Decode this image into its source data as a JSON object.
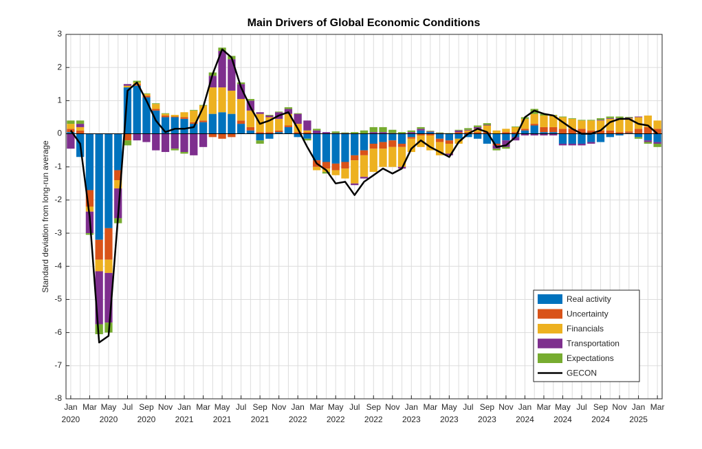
{
  "chart_data": {
    "type": "stacked-bar",
    "title": "Main Drivers of Global Economic Conditions",
    "y_label": "Standard deviation from long-run average",
    "categories": [
      "Jan",
      null,
      "Mar",
      null,
      "May",
      null,
      "Jul",
      null,
      "Sep",
      null,
      "Nov",
      null,
      "Jan",
      null,
      "Mar",
      null,
      "May",
      null,
      "Jul",
      null,
      "Sep",
      null,
      "Nov",
      null,
      "Jan",
      null,
      "Mar",
      null,
      "May",
      null,
      "Jul",
      null,
      "Sep",
      null,
      "Nov",
      null,
      "Jan",
      null,
      "Mar",
      null,
      "May",
      null,
      "Jul",
      null,
      "Sep",
      null,
      "Nov",
      null,
      "Jan",
      null,
      "Mar",
      null,
      "May",
      null,
      "Jul",
      null,
      "Sep",
      null,
      "Nov",
      null,
      "Jan",
      null,
      "Mar"
    ],
    "years": [
      "2020",
      null,
      null,
      null,
      "2020",
      null,
      null,
      null,
      "2020",
      null,
      null,
      null,
      "2021",
      null,
      null,
      null,
      "2021",
      null,
      null,
      null,
      "2021",
      null,
      null,
      null,
      "2022",
      null,
      null,
      null,
      "2022",
      null,
      null,
      null,
      "2022",
      null,
      null,
      null,
      "2023",
      null,
      null,
      null,
      "2023",
      null,
      null,
      null,
      "2023",
      null,
      null,
      null,
      "2024",
      null,
      null,
      null,
      "2024",
      null,
      null,
      null,
      "2024",
      null,
      null,
      null,
      "2025",
      null,
      null
    ],
    "ylim": [
      -8,
      3
    ],
    "yticks": [
      -8,
      -7,
      -6,
      -5,
      -4,
      -3,
      -2,
      -1,
      0,
      1,
      2,
      3
    ],
    "grid": true,
    "legend": "lower right",
    "series": [
      {
        "name": "Real activity",
        "color": "#0072BD",
        "values": [
          0.05,
          -0.7,
          -1.7,
          -3.2,
          -2.85,
          -1.1,
          1.4,
          1.45,
          1.1,
          0.7,
          0.5,
          0.5,
          0.45,
          0.3,
          0.35,
          0.6,
          0.65,
          0.6,
          0.3,
          0.1,
          -0.2,
          -0.15,
          0.05,
          0.2,
          -0.1,
          -0.15,
          -0.8,
          -0.85,
          -0.9,
          -0.85,
          -0.65,
          -0.5,
          -0.3,
          -0.25,
          -0.2,
          -0.3,
          -0.1,
          0.1,
          0.05,
          -0.15,
          -0.2,
          -0.15,
          -0.1,
          -0.15,
          -0.3,
          -0.3,
          -0.2,
          -0.1,
          0.1,
          0.25,
          0.05,
          0.05,
          -0.3,
          -0.3,
          -0.3,
          -0.25,
          -0.25,
          -0.1,
          -0.05,
          0.02,
          -0.1,
          -0.2,
          -0.25
        ]
      },
      {
        "name": "Uncertainty",
        "color": "#D95319",
        "values": [
          0.1,
          0.1,
          -0.5,
          -0.6,
          -0.95,
          -0.3,
          -0.2,
          0.05,
          0.05,
          0.05,
          0.05,
          0.02,
          0.05,
          0.05,
          0.05,
          -0.1,
          -0.15,
          -0.1,
          0.1,
          0.1,
          0.05,
          0.05,
          0.05,
          0.05,
          0.05,
          0.05,
          -0.2,
          -0.2,
          -0.2,
          -0.2,
          -0.15,
          -0.15,
          -0.15,
          -0.2,
          -0.2,
          -0.1,
          -0.05,
          -0.05,
          -0.05,
          -0.1,
          -0.1,
          0.05,
          0.05,
          0.05,
          0.05,
          -0.05,
          0.05,
          0.05,
          0.05,
          0.05,
          0.15,
          0.15,
          0.15,
          0.15,
          0.15,
          0.1,
          0.1,
          0.1,
          0.05,
          0.05,
          0.15,
          0.2,
          0.15
        ]
      },
      {
        "name": "Financials",
        "color": "#EDB120",
        "values": [
          0.15,
          0.1,
          -0.15,
          -0.35,
          -0.4,
          -0.25,
          0.05,
          0.05,
          0.05,
          0.15,
          0.05,
          0.05,
          0.15,
          0.35,
          0.45,
          0.8,
          0.75,
          0.7,
          0.65,
          0.5,
          0.55,
          0.45,
          0.35,
          0.35,
          0.25,
          0.05,
          -0.1,
          -0.1,
          -0.15,
          -0.3,
          -0.7,
          -0.65,
          -0.7,
          -0.55,
          -0.6,
          -0.6,
          -0.4,
          -0.35,
          -0.45,
          -0.4,
          -0.3,
          -0.15,
          0.05,
          0.1,
          0.2,
          0.1,
          0.1,
          0.15,
          0.3,
          0.3,
          0.35,
          0.35,
          0.35,
          0.3,
          0.25,
          0.3,
          0.3,
          0.35,
          0.4,
          0.4,
          0.35,
          0.35,
          0.25
        ]
      },
      {
        "name": "Transportation",
        "color": "#7E2F8E",
        "values": [
          -0.45,
          0.1,
          -0.65,
          -1.6,
          -1.5,
          -0.9,
          0.05,
          -0.2,
          -0.25,
          -0.5,
          -0.55,
          -0.45,
          -0.55,
          -0.65,
          -0.4,
          0.35,
          1.1,
          0.95,
          0.45,
          0.3,
          0.05,
          0.05,
          0.2,
          0.15,
          0.3,
          0.3,
          0.1,
          0.05,
          0.02,
          0.02,
          -0.05,
          -0.05,
          0.05,
          0.05,
          0.02,
          -0.05,
          0.05,
          0.05,
          0.02,
          0.02,
          -0.05,
          0.05,
          0.02,
          0.05,
          0.02,
          -0.1,
          -0.2,
          -0.1,
          -0.05,
          -0.05,
          -0.05,
          -0.05,
          -0.05,
          -0.05,
          -0.05,
          -0.05,
          0.02,
          0.02,
          0.02,
          0.02,
          0.02,
          -0.05,
          -0.05
        ]
      },
      {
        "name": "Expectations",
        "color": "#77AC30",
        "values": [
          0.1,
          0.1,
          -0.05,
          -0.3,
          -0.3,
          -0.15,
          -0.15,
          0.05,
          0.02,
          0.02,
          0.02,
          -0.05,
          -0.05,
          0.02,
          0.02,
          0.1,
          0.1,
          0.1,
          0.05,
          0.05,
          -0.1,
          0.02,
          0.02,
          0.05,
          0.02,
          -0.05,
          0.05,
          -0.05,
          0.05,
          0.02,
          0.05,
          0.1,
          0.15,
          0.15,
          0.1,
          0.05,
          0.05,
          0.05,
          0.02,
          0.02,
          0.02,
          0.02,
          0.05,
          0.05,
          0.05,
          -0.05,
          -0.05,
          0.02,
          0.05,
          0.15,
          0.05,
          0.02,
          0.02,
          0.02,
          0.02,
          0.02,
          0.05,
          0.05,
          0.05,
          0.02,
          -0.05,
          -0.05,
          -0.1
        ]
      },
      {
        "name": "GECON",
        "color": "#000000",
        "type": "line",
        "values": [
          0.1,
          -0.3,
          -2.5,
          -6.3,
          -6.1,
          -2.5,
          1.3,
          1.55,
          1.0,
          0.4,
          0.05,
          0.15,
          0.15,
          0.2,
          0.8,
          1.8,
          2.55,
          2.3,
          1.4,
          0.8,
          0.3,
          0.4,
          0.55,
          0.65,
          0.15,
          -0.4,
          -0.9,
          -1.1,
          -1.5,
          -1.45,
          -1.85,
          -1.45,
          -1.25,
          -1.05,
          -1.2,
          -1.05,
          -0.45,
          -0.2,
          -0.4,
          -0.55,
          -0.7,
          -0.25,
          0.0,
          0.15,
          0.05,
          -0.4,
          -0.35,
          -0.1,
          0.5,
          0.7,
          0.6,
          0.55,
          0.35,
          0.15,
          0.0,
          0.0,
          0.1,
          0.35,
          0.45,
          0.45,
          0.3,
          0.25,
          0.0
        ]
      }
    ]
  }
}
